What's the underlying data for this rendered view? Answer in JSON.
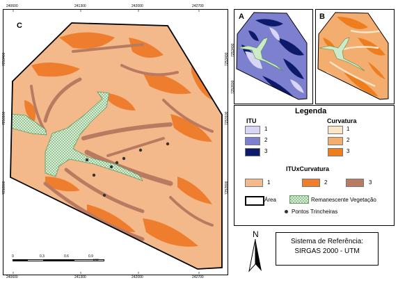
{
  "main_map": {
    "letter": "C",
    "top_ticks": [
      "240600",
      "241300",
      "242000",
      "242700"
    ],
    "bottom_ticks": [
      "240600",
      "241300",
      "242000",
      "242700"
    ],
    "left_ticks": [
      "7253400",
      "7253100",
      "7252800"
    ],
    "right_ticks": [
      "7253400",
      "7253100",
      "7252800"
    ],
    "scalebar": {
      "labels": [
        "0",
        "0.3",
        "0.6",
        "0.9"
      ],
      "unit": "KM"
    }
  },
  "inset_a": {
    "letter": "A",
    "ticks_left": [
      "7253400",
      "7252600"
    ]
  },
  "inset_b": {
    "letter": "B"
  },
  "legend": {
    "title": "Legenda",
    "itu": {
      "title": "ITU",
      "items": [
        {
          "label": "1",
          "color": "#d7d7f5"
        },
        {
          "label": "2",
          "color": "#7c80cf"
        },
        {
          "label": "3",
          "color": "#0d1a6b"
        }
      ]
    },
    "curvatura": {
      "title": "Curvatura",
      "items": [
        {
          "label": "1",
          "color": "#fbe5c8"
        },
        {
          "label": "2",
          "color": "#f3ad6e"
        },
        {
          "label": "3",
          "color": "#ee7d1e"
        }
      ]
    },
    "itu_x_curv": {
      "title": "ITUxCurvatura",
      "items": [
        {
          "label": "1",
          "color": "#f3b98a"
        },
        {
          "label": "2",
          "color": "#ee7d2e"
        },
        {
          "label": "3",
          "color": "#b97a62"
        }
      ]
    },
    "area_label": "Área",
    "vegetation_label": "Remanescente Vegetação",
    "trench_label": "Pontos Trincheiras"
  },
  "reference": {
    "line1": "Sistema de Referência:",
    "line2": "SIRGAS 2000 - UTM"
  },
  "north": {
    "label": "N"
  }
}
